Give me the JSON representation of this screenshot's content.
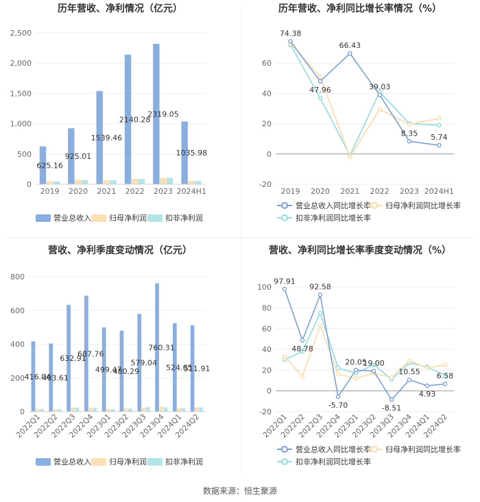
{
  "source_label": "数据来源：恒生聚源",
  "colors": {
    "revenue": "#8aaee0",
    "net_profit": "#fce0b5",
    "deducted_profit": "#b3e5e8",
    "revenue_line": "#7b9fd4",
    "net_profit_line": "#fcd9a8",
    "deducted_profit_line": "#8fdbe0",
    "grid": "#eeeeee",
    "axis_text": "#666666"
  },
  "chart_data": [
    {
      "id": "annual-bar",
      "type": "bar",
      "title": "历年营收、净利情况（亿元）",
      "categories": [
        "2019",
        "2020",
        "2021",
        "2022",
        "2023",
        "2024H1"
      ],
      "series": [
        {
          "name": "营业总收入",
          "values": [
            625.16,
            925.01,
            1539.46,
            2140.28,
            2319.05,
            1035.98
          ],
          "labels": [
            "625.16",
            "925.01",
            "1539.46",
            "2140.28",
            "2319.05",
            "1035.98"
          ]
        },
        {
          "name": "归母净利润",
          "values": [
            50,
            74,
            68,
            93,
            105,
            56
          ]
        },
        {
          "name": "扣非净利润",
          "values": [
            46,
            70,
            68,
            88,
            102,
            54
          ]
        }
      ],
      "yticks": [
        "0",
        "500",
        "1,000",
        "1,500",
        "2,000",
        "2,500"
      ],
      "ylim": [
        0,
        2500
      ]
    },
    {
      "id": "annual-line",
      "type": "line",
      "title": "历年营收、净利同比增长率情况（%）",
      "categories": [
        "2019",
        "2020",
        "2021",
        "2022",
        "2023",
        "2024H1"
      ],
      "series": [
        {
          "name": "营业总收入同比增长率",
          "values": [
            74.38,
            47.96,
            66.43,
            39.03,
            8.35,
            5.74
          ],
          "labels": [
            "74.38",
            "47.96",
            "66.43",
            "39.03",
            "8.35",
            "5.74"
          ]
        },
        {
          "name": "归母净利润同比增长率",
          "values": [
            73,
            51,
            -2,
            29.5,
            19.5,
            23.5
          ]
        },
        {
          "name": "扣非净利润同比增长率",
          "values": [
            72,
            37,
            -1,
            41,
            20,
            19
          ]
        }
      ],
      "yticks": [
        "-20",
        "0",
        "20",
        "40",
        "60"
      ],
      "ylim": [
        -20,
        80
      ]
    },
    {
      "id": "quarterly-bar",
      "type": "bar",
      "title": "营收、净利季度变动情况（亿元）",
      "categories": [
        "2022Q1",
        "2022Q2",
        "2022Q3",
        "2022Q4",
        "2023Q1",
        "2023Q2",
        "2023Q3",
        "2023Q4",
        "2024Q1",
        "2024Q2"
      ],
      "series": [
        {
          "name": "营业总收入",
          "values": [
            416.04,
            403.61,
            632.91,
            687.76,
            499.47,
            480.29,
            579.04,
            760.31,
            524.05,
            511.91
          ],
          "labels": [
            "416.04",
            "403.61",
            "632.91",
            "687.76",
            "499.47",
            "480.29",
            "579.04",
            "760.31",
            "524.05",
            "511.91"
          ]
        },
        {
          "name": "归母净利润",
          "values": [
            16,
            14,
            23,
            23,
            16,
            20,
            25,
            30,
            22,
            25
          ]
        },
        {
          "name": "扣非净利润",
          "values": [
            15,
            15,
            25,
            22,
            14,
            18,
            26,
            26,
            20,
            25
          ]
        }
      ],
      "yticks": [
        "0",
        "200",
        "400",
        "600",
        "800"
      ],
      "ylim": [
        0,
        800
      ]
    },
    {
      "id": "quarterly-line",
      "type": "line",
      "title": "营收、净利同比增长率季度变动情况（%）",
      "categories": [
        "2022Q1",
        "2022Q2",
        "2022Q3",
        "2022Q4",
        "2023Q1",
        "2023Q2",
        "2023Q3",
        "2023Q4",
        "2024Q1",
        "2024Q2"
      ],
      "series": [
        {
          "name": "营业总收入同比增长率",
          "values": [
            97.91,
            48.78,
            92.58,
            -5.7,
            20.05,
            19.0,
            -8.51,
            10.55,
            4.93,
            6.58
          ],
          "labels": [
            "97.91",
            "48.78",
            "92.58",
            "-5.70",
            "20.05",
            "19.00",
            "-8.51",
            "10.55",
            "4.93",
            "6.58"
          ]
        },
        {
          "name": "归母净利润同比增长率",
          "values": [
            33,
            14,
            63,
            16,
            12,
            17,
            13,
            29,
            22,
            25
          ]
        },
        {
          "name": "扣非净利润同比增长率",
          "values": [
            30,
            38,
            75,
            22,
            17,
            25,
            11,
            27,
            23,
            15
          ]
        }
      ],
      "yticks": [
        "-20",
        "0",
        "20",
        "40",
        "60",
        "80",
        "100"
      ],
      "ylim": [
        -20,
        110
      ]
    }
  ]
}
